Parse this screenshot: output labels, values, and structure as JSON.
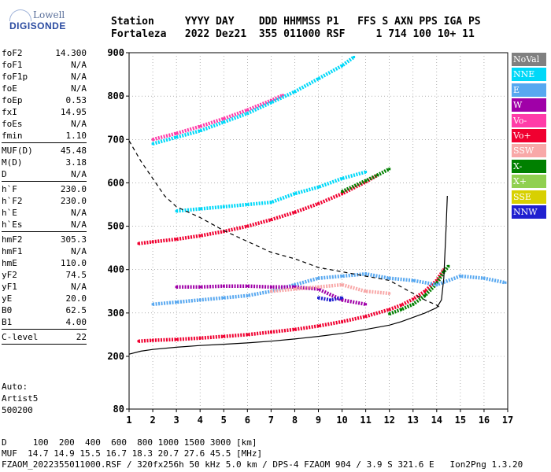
{
  "logo": {
    "line1": "Lowell",
    "line2": "DIGISONDE"
  },
  "header": {
    "line1": "Station     YYYY DAY    DDD HHMMSS P1   FFS S AXN PPS IGA PS",
    "line2": "Fortaleza   2022 Dez21  355 011000 RSF     1 714 100 10+ 11"
  },
  "params": {
    "group1": [
      {
        "label": "foF2",
        "value": "14.300"
      },
      {
        "label": "foF1",
        "value": "N/A"
      },
      {
        "label": "foF1p",
        "value": "N/A"
      },
      {
        "label": "foE",
        "value": "N/A"
      },
      {
        "label": "foEp",
        "value": "0.53"
      },
      {
        "label": "fxI",
        "value": "14.95"
      },
      {
        "label": "foEs",
        "value": "N/A"
      },
      {
        "label": "fmin",
        "value": "1.10"
      }
    ],
    "group2": [
      {
        "label": "MUF(D)",
        "value": "45.48"
      },
      {
        "label": "M(D)",
        "value": "3.18"
      },
      {
        "label": "D",
        "value": "N/A"
      }
    ],
    "group3": [
      {
        "label": "h`F",
        "value": "230.0"
      },
      {
        "label": "h`F2",
        "value": "230.0"
      },
      {
        "label": "h`E",
        "value": "N/A"
      },
      {
        "label": "h`Es",
        "value": "N/A"
      }
    ],
    "group4": [
      {
        "label": "hmF2",
        "value": "305.3"
      },
      {
        "label": "hmF1",
        "value": "N/A"
      },
      {
        "label": "hmE",
        "value": "110.0"
      },
      {
        "label": "yF2",
        "value": "74.5"
      },
      {
        "label": "yF1",
        "value": "N/A"
      },
      {
        "label": "yE",
        "value": "20.0"
      },
      {
        "label": "B0",
        "value": "62.5"
      },
      {
        "label": "B1",
        "value": "4.00"
      }
    ],
    "group5": [
      {
        "label": "C-level",
        "value": "22"
      }
    ]
  },
  "auto": {
    "line1": "Auto:",
    "line2": "Artist5",
    "line3": "500200"
  },
  "footer": {
    "line1": "D     100  200  400  600  800 1000 1500 3000 [km]",
    "line2": "MUF  14.7 14.9 15.5 16.7 18.3 20.7 27.6 45.5 [MHz]",
    "line3": "FZAOM_2022355011000.RSF / 320fx256h 50 kHz 5.0 km / DPS-4 FZAOM 904 / 3.9 S 321.6 E   Ion2Png 1.3.20"
  },
  "legend": [
    {
      "label": "NoVal",
      "color": "#808080"
    },
    {
      "label": "NNE",
      "color": "#00d8f8"
    },
    {
      "label": "E",
      "color": "#58a8f0"
    },
    {
      "label": "W",
      "color": "#a000a8"
    },
    {
      "label": "Vo-",
      "color": "#ff3ca8"
    },
    {
      "label": "Vo+",
      "color": "#f00030"
    },
    {
      "label": "SSW",
      "color": "#f8a8a8"
    },
    {
      "label": "X-",
      "color": "#008000"
    },
    {
      "label": "X+",
      "color": "#90d050"
    },
    {
      "label": "SSE",
      "color": "#d8d000"
    },
    {
      "label": "NNW",
      "color": "#2020d0"
    }
  ],
  "chart_data": {
    "type": "scatter",
    "xlim": [
      1,
      17
    ],
    "ylim": [
      80,
      900
    ],
    "x_ticks": [
      "1",
      "2",
      "3",
      "4",
      "5",
      "6",
      "7",
      "8",
      "9",
      "10",
      "11",
      "12",
      "13",
      "14",
      "15",
      "16",
      "17"
    ],
    "y_ticks": [
      "80",
      "200",
      "300",
      "400",
      "500",
      "600",
      "700",
      "800",
      "900"
    ],
    "grid": true,
    "legend_position": "right",
    "traces": [
      {
        "name": "Vo+",
        "color": "#f00030",
        "points": [
          [
            1.4,
            235
          ],
          [
            2,
            237
          ],
          [
            3,
            239
          ],
          [
            4,
            242
          ],
          [
            5,
            246
          ],
          [
            6,
            250
          ],
          [
            7,
            256
          ],
          [
            8,
            262
          ],
          [
            9,
            270
          ],
          [
            10,
            280
          ],
          [
            11,
            292
          ],
          [
            12,
            308
          ],
          [
            12.5,
            318
          ],
          [
            13,
            332
          ],
          [
            13.5,
            350
          ],
          [
            14,
            375
          ],
          [
            14.3,
            400
          ]
        ]
      },
      {
        "name": "X-",
        "color": "#008000",
        "points": [
          [
            12,
            298
          ],
          [
            12.5,
            308
          ],
          [
            13,
            320
          ],
          [
            13.5,
            340
          ],
          [
            14,
            368
          ],
          [
            14.3,
            395
          ],
          [
            14.5,
            408
          ]
        ]
      },
      {
        "name": "Vo+",
        "color": "#f00030",
        "points": [
          [
            1.4,
            460
          ],
          [
            2,
            464
          ],
          [
            3,
            470
          ],
          [
            4,
            478
          ],
          [
            5,
            488
          ],
          [
            6,
            500
          ],
          [
            7,
            515
          ],
          [
            8,
            532
          ],
          [
            9,
            552
          ],
          [
            10,
            575
          ],
          [
            11,
            602
          ],
          [
            11.5,
            618
          ]
        ]
      },
      {
        "name": "X-",
        "color": "#008000",
        "points": [
          [
            10,
            580
          ],
          [
            11,
            605
          ],
          [
            11.5,
            618
          ],
          [
            12,
            632
          ]
        ]
      },
      {
        "name": "Vo-",
        "color": "#ff3ca8",
        "points": [
          [
            2,
            700
          ],
          [
            3,
            714
          ],
          [
            4,
            730
          ],
          [
            5,
            748
          ],
          [
            6,
            768
          ],
          [
            7,
            790
          ],
          [
            7.5,
            802
          ]
        ]
      },
      {
        "name": "NNE",
        "color": "#00d8f8",
        "points": [
          [
            2,
            690
          ],
          [
            3,
            705
          ],
          [
            4,
            720
          ],
          [
            5,
            740
          ],
          [
            6,
            760
          ],
          [
            7,
            785
          ],
          [
            8,
            810
          ],
          [
            9,
            840
          ],
          [
            10,
            870
          ],
          [
            10.5,
            890
          ]
        ]
      },
      {
        "name": "NNE",
        "color": "#00d8f8",
        "points": [
          [
            3,
            535
          ],
          [
            4,
            540
          ],
          [
            5,
            545
          ],
          [
            6,
            550
          ],
          [
            7,
            555
          ],
          [
            8,
            575
          ],
          [
            9,
            590
          ],
          [
            10,
            610
          ],
          [
            11,
            625
          ]
        ]
      },
      {
        "name": "E",
        "color": "#58a8f0",
        "points": [
          [
            2,
            320
          ],
          [
            3,
            325
          ],
          [
            4,
            330
          ],
          [
            5,
            335
          ],
          [
            6,
            340
          ],
          [
            7,
            350
          ],
          [
            8,
            365
          ],
          [
            9,
            380
          ],
          [
            10,
            385
          ],
          [
            11,
            390
          ],
          [
            12,
            380
          ],
          [
            13,
            375
          ],
          [
            14,
            365
          ],
          [
            15,
            385
          ],
          [
            16,
            380
          ],
          [
            16.9,
            370
          ]
        ]
      },
      {
        "name": "W",
        "color": "#a000a8",
        "points": [
          [
            3,
            360
          ],
          [
            4,
            360
          ],
          [
            5,
            362
          ],
          [
            6,
            362
          ],
          [
            7,
            360
          ],
          [
            8,
            360
          ],
          [
            9,
            355
          ],
          [
            10,
            330
          ],
          [
            11,
            320
          ]
        ]
      },
      {
        "name": "SSW",
        "color": "#f8a8a8",
        "points": [
          [
            7,
            350
          ],
          [
            8,
            355
          ],
          [
            9,
            360
          ],
          [
            10,
            365
          ],
          [
            11,
            350
          ],
          [
            12,
            345
          ]
        ]
      },
      {
        "name": "NNW",
        "color": "#2020d0",
        "points": [
          [
            9,
            335
          ],
          [
            9.5,
            330
          ],
          [
            10,
            335
          ]
        ]
      }
    ],
    "curves": [
      {
        "name": "profile-solid",
        "style": "solid",
        "points": [
          [
            1,
            205
          ],
          [
            1.5,
            212
          ],
          [
            2,
            216
          ],
          [
            3,
            221
          ],
          [
            4,
            225
          ],
          [
            5,
            228
          ],
          [
            6,
            231
          ],
          [
            7,
            235
          ],
          [
            8,
            240
          ],
          [
            9,
            246
          ],
          [
            10,
            253
          ],
          [
            11,
            262
          ],
          [
            12,
            272
          ],
          [
            12.5,
            280
          ],
          [
            13,
            290
          ],
          [
            13.5,
            300
          ],
          [
            14,
            312
          ],
          [
            14.2,
            330
          ],
          [
            14.3,
            380
          ],
          [
            14.35,
            440
          ],
          [
            14.4,
            500
          ],
          [
            14.45,
            570
          ]
        ]
      },
      {
        "name": "profile-dashed",
        "style": "dashed",
        "points": [
          [
            1,
            697
          ],
          [
            1.5,
            650
          ],
          [
            2,
            610
          ],
          [
            2.5,
            570
          ],
          [
            3,
            545
          ],
          [
            4,
            520
          ],
          [
            5,
            490
          ],
          [
            6,
            465
          ],
          [
            7,
            440
          ],
          [
            8,
            425
          ],
          [
            9,
            405
          ],
          [
            10,
            395
          ],
          [
            11,
            385
          ],
          [
            12,
            375
          ],
          [
            13,
            345
          ],
          [
            13.5,
            330
          ],
          [
            14,
            318
          ],
          [
            14.2,
            310
          ]
        ]
      }
    ]
  }
}
